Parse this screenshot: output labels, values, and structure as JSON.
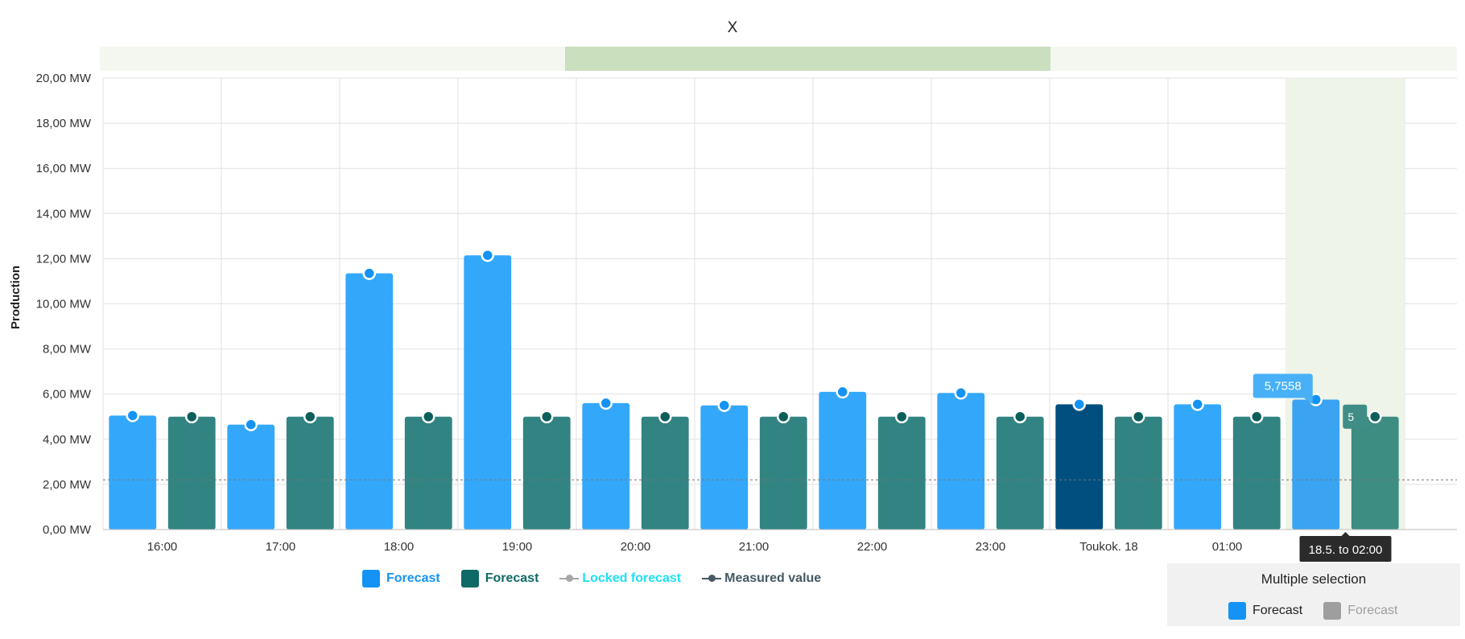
{
  "chart_data": {
    "type": "bar",
    "title": "X",
    "ylabel": "Production",
    "xlabel": "",
    "ylim": [
      0,
      20
    ],
    "y_ticks": [
      "0,00 MW",
      "2,00 MW",
      "4,00 MW",
      "6,00 MW",
      "8,00 MW",
      "10,00 MW",
      "12,00 MW",
      "14,00 MW",
      "16,00 MW",
      "18,00 MW",
      "20,00 MW"
    ],
    "categories": [
      "16:00",
      "17:00",
      "18:00",
      "19:00",
      "20:00",
      "21:00",
      "22:00",
      "23:00",
      "Toukok. 18",
      "01:00",
      "02:00"
    ],
    "grid": true,
    "reference_line": 2.2,
    "series": [
      {
        "name": "Forecast",
        "color": "#1da1f9",
        "values": [
          5.05,
          4.65,
          11.35,
          12.15,
          5.6,
          5.5,
          6.1,
          6.05,
          5.55,
          5.55,
          5.7558
        ]
      },
      {
        "name": "Forecast",
        "color": "#006b66",
        "values": [
          5.0,
          5.0,
          5.0,
          5.0,
          5.0,
          5.0,
          5.0,
          5.0,
          5.0,
          5.0,
          5.0
        ]
      }
    ],
    "highlighted_bar": {
      "series": 0,
      "category": "Toukok. 18",
      "color": "#004f7f"
    },
    "hovered_category": "02:00",
    "tooltip_values": [
      "5,7558",
      "5"
    ],
    "x_tooltip": "18.5. to 02:00"
  },
  "legend": [
    {
      "label": "Forecast",
      "color": "#1493f4",
      "symbol": "square"
    },
    {
      "label": "Forecast",
      "color": "#0d6a66",
      "symbol": "square"
    },
    {
      "label": "Locked forecast",
      "color": "#1ee0f5",
      "symbol": "line",
      "symbol_color": "#a6a6a6"
    },
    {
      "label": "Measured value",
      "color": "#455a64",
      "symbol": "line",
      "symbol_color": "#455a64"
    }
  ],
  "multiple_selection": {
    "title": "Multiple selection",
    "items": [
      {
        "label": "Forecast",
        "color": "#1493f4",
        "text_color": "#222222"
      },
      {
        "label": "Forecast",
        "color": "#9e9e9e",
        "text_color": "#9e9e9e"
      }
    ]
  },
  "colors": {
    "band_light": "#f4f7ef",
    "band_dark": "#cadfbd",
    "hover_band": "#eef4e7",
    "grid": "#e2e2e2",
    "axis_text": "#333333"
  }
}
